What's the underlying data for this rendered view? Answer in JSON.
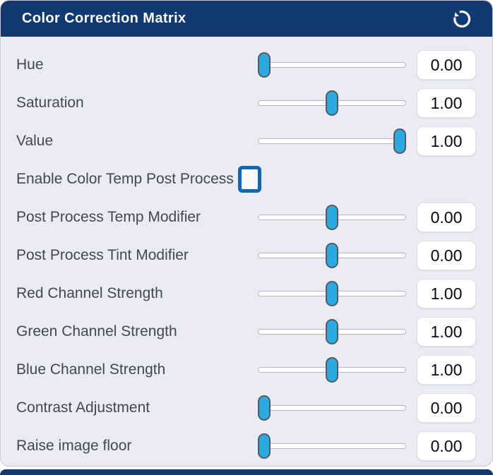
{
  "panel": {
    "title": "Color Correction Matrix",
    "reset_icon": "circular-arrow-counterclockwise"
  },
  "colors": {
    "header_bg": "#113a72",
    "body_bg": "#ebecf3",
    "slider_thumb": "#29abe2",
    "checkbox_border": "#0e67b2",
    "label_text": "#43474e",
    "value_text": "#0a0a0a"
  },
  "rows": [
    {
      "type": "slider",
      "label": "Hue",
      "value": "0.00",
      "position": 0
    },
    {
      "type": "slider",
      "label": "Saturation",
      "value": "1.00",
      "position": 50
    },
    {
      "type": "slider",
      "label": "Value",
      "value": "1.00",
      "position": 100
    },
    {
      "type": "checkbox",
      "label": "Enable Color Temp Post Process",
      "checked": false
    },
    {
      "type": "slider",
      "label": "Post Process Temp Modifier",
      "value": "0.00",
      "position": 50
    },
    {
      "type": "slider",
      "label": "Post Process Tint Modifier",
      "value": "0.00",
      "position": 50
    },
    {
      "type": "slider",
      "label": "Red Channel Strength",
      "value": "1.00",
      "position": 50
    },
    {
      "type": "slider",
      "label": "Green Channel Strength",
      "value": "1.00",
      "position": 50
    },
    {
      "type": "slider",
      "label": "Blue Channel Strength",
      "value": "1.00",
      "position": 50
    },
    {
      "type": "slider",
      "label": "Contrast Adjustment",
      "value": "0.00",
      "position": 0
    },
    {
      "type": "slider",
      "label": "Raise image floor",
      "value": "0.00",
      "position": 0
    }
  ]
}
